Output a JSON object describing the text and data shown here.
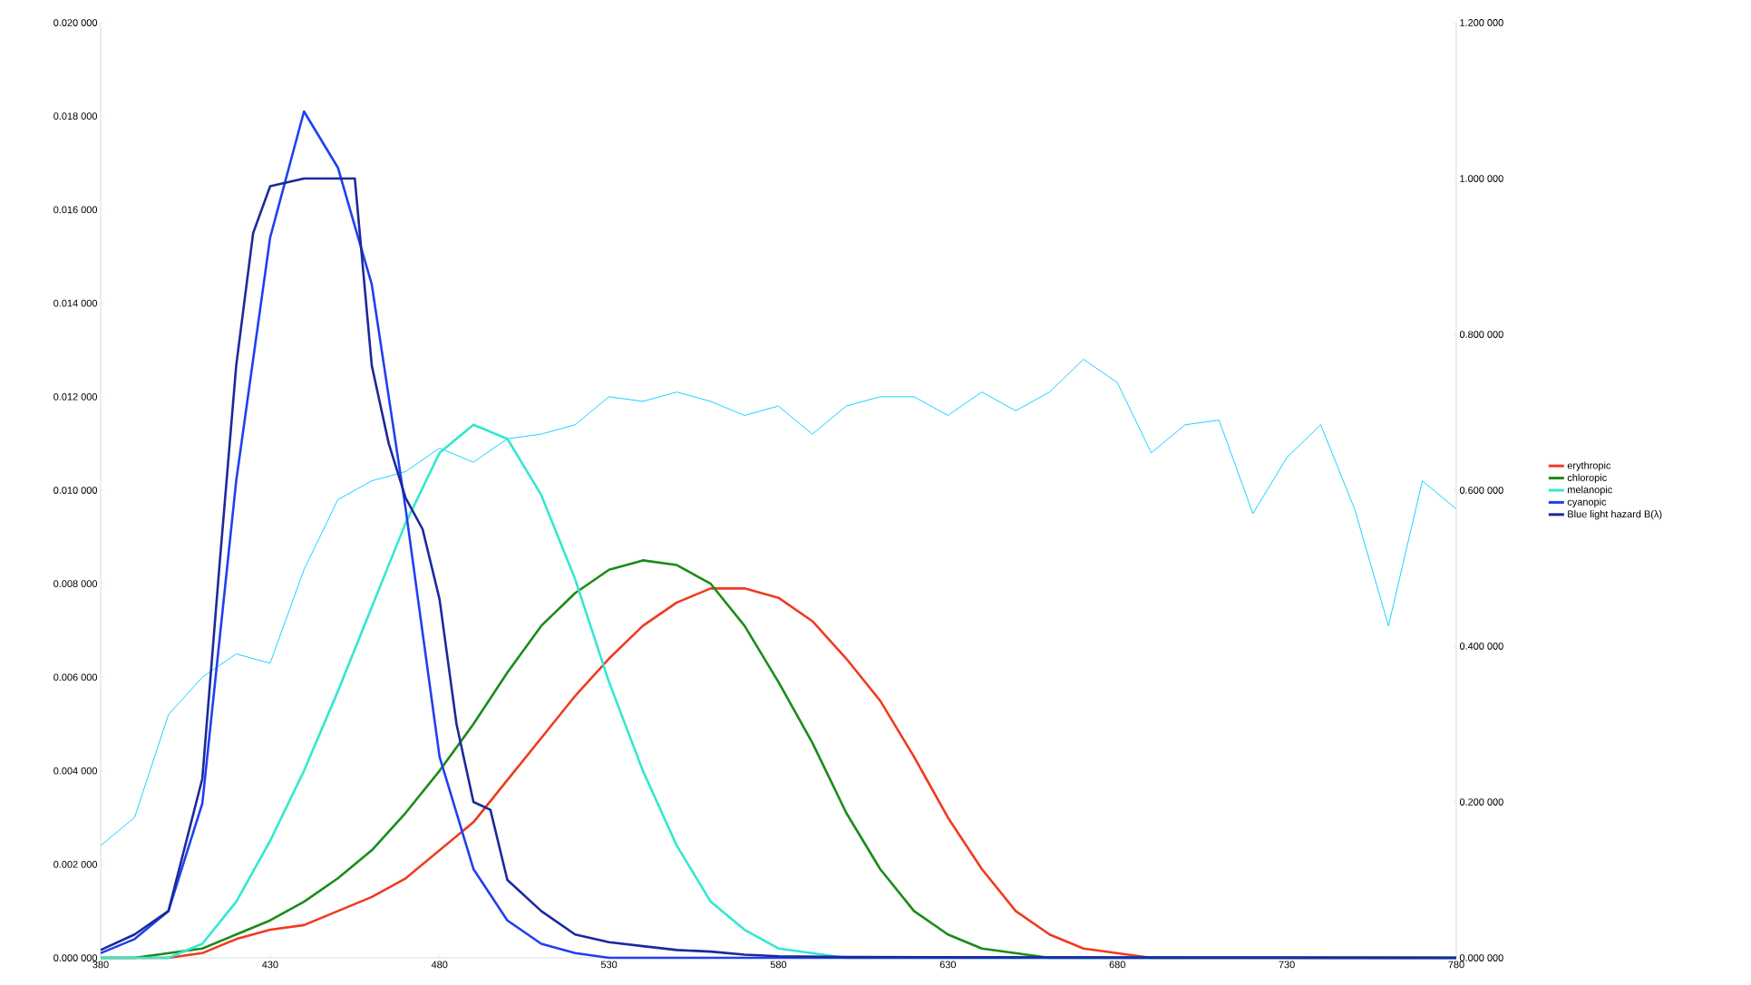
{
  "chart_data": {
    "type": "line",
    "legend": "right",
    "grid": false,
    "marker": "none",
    "line_style": "solid",
    "xlim": [
      380,
      780
    ],
    "xticks": [
      380,
      430,
      480,
      530,
      580,
      630,
      680,
      730,
      780
    ],
    "ylim": [
      0,
      0.02
    ],
    "yticks": [
      {
        "value": 0,
        "label": "0.000 000"
      },
      {
        "value": 0.002,
        "label": "0.002 000"
      },
      {
        "value": 0.004,
        "label": "0.004 000"
      },
      {
        "value": 0.006,
        "label": "0.006 000"
      },
      {
        "value": 0.008,
        "label": "0.008 000"
      },
      {
        "value": 0.01,
        "label": "0.010 000"
      },
      {
        "value": 0.012,
        "label": "0.012 000"
      },
      {
        "value": 0.014,
        "label": "0.014 000"
      },
      {
        "value": 0.016,
        "label": "0.016 000"
      },
      {
        "value": 0.018,
        "label": "0.018 000"
      },
      {
        "value": 0.02,
        "label": "0.020 000"
      }
    ],
    "y2lim": [
      0,
      1.2
    ],
    "y2ticks": [
      {
        "value": 0,
        "label": "0.000 000"
      },
      {
        "value": 0.2,
        "label": "0.200 000"
      },
      {
        "value": 0.4,
        "label": "0.400 000"
      },
      {
        "value": 0.6,
        "label": "0.600 000"
      },
      {
        "value": 0.8,
        "label": "0.800 000"
      },
      {
        "value": 1.0,
        "label": "1.000 000"
      },
      {
        "value": 1.2,
        "label": "1.200 000"
      }
    ],
    "series": [
      {
        "color": "#00ccff",
        "x": [
          380,
          390,
          400,
          410,
          420,
          430,
          440,
          450,
          460,
          470,
          480,
          490,
          500,
          510,
          520,
          530,
          540,
          550,
          560,
          570,
          580,
          590,
          600,
          610,
          620,
          630,
          640,
          650,
          660,
          670,
          680,
          690,
          700,
          710,
          720,
          730,
          740,
          750,
          760,
          770,
          780
        ],
        "values": [
          0.0024,
          0.003,
          0.0052,
          0.006,
          0.0065,
          0.0063,
          0.0083,
          0.0098,
          0.0102,
          0.0104,
          0.0109,
          0.0106,
          0.0111,
          0.0112,
          0.0114,
          0.012,
          0.0119,
          0.0121,
          0.0119,
          0.0116,
          0.0118,
          0.0112,
          0.0118,
          0.012,
          0.012,
          0.0116,
          0.0121,
          0.0117,
          0.0121,
          0.0128,
          0.0123,
          0.0108,
          0.0114,
          0.0115,
          0.0095,
          0.0107,
          0.0114,
          0.0096,
          0.0071,
          0.0102,
          0.0096
        ]
      },
      {
        "name": "erythropic",
        "color": "#f03a20",
        "x": [
          380,
          390,
          400,
          410,
          420,
          430,
          440,
          450,
          460,
          470,
          480,
          490,
          500,
          510,
          520,
          530,
          540,
          550,
          560,
          570,
          580,
          590,
          600,
          610,
          620,
          630,
          640,
          650,
          660,
          670,
          680,
          690,
          700,
          780
        ],
        "values": [
          0,
          0,
          0,
          0.0001,
          0.0004,
          0.0006,
          0.0007,
          0.001,
          0.0013,
          0.0017,
          0.0023,
          0.0029,
          0.0038,
          0.0047,
          0.0056,
          0.0064,
          0.0071,
          0.0076,
          0.0079,
          0.0079,
          0.0077,
          0.0072,
          0.0064,
          0.0055,
          0.0043,
          0.003,
          0.0019,
          0.001,
          0.0005,
          0.0002,
          0.0001,
          0,
          0,
          0
        ]
      },
      {
        "name": "chloropic",
        "color": "#1a8c1a",
        "x": [
          380,
          390,
          400,
          410,
          420,
          430,
          440,
          450,
          460,
          470,
          480,
          490,
          500,
          510,
          520,
          530,
          540,
          550,
          560,
          570,
          580,
          590,
          600,
          610,
          620,
          630,
          640,
          650,
          660,
          780
        ],
        "values": [
          0,
          0,
          0.0001,
          0.0002,
          0.0005,
          0.0008,
          0.0012,
          0.0017,
          0.0023,
          0.0031,
          0.004,
          0.005,
          0.0061,
          0.0071,
          0.0078,
          0.0083,
          0.0085,
          0.0084,
          0.008,
          0.0071,
          0.0059,
          0.0046,
          0.0031,
          0.0019,
          0.001,
          0.0005,
          0.0002,
          0.0001,
          0,
          0
        ]
      },
      {
        "name": "melanopic",
        "color": "#33e8d0",
        "x": [
          380,
          390,
          400,
          410,
          420,
          430,
          440,
          450,
          460,
          470,
          480,
          490,
          500,
          510,
          520,
          530,
          540,
          550,
          560,
          570,
          580,
          590,
          600,
          780
        ],
        "values": [
          0,
          0,
          0,
          0.0003,
          0.0012,
          0.0025,
          0.004,
          0.0057,
          0.0075,
          0.0093,
          0.0108,
          0.0114,
          0.0111,
          0.0099,
          0.0081,
          0.0059,
          0.004,
          0.0024,
          0.0012,
          0.0006,
          0.0002,
          0.0001,
          0,
          0
        ]
      },
      {
        "name": "cyanopic",
        "color": "#2040f0",
        "x": [
          380,
          390,
          400,
          410,
          420,
          430,
          440,
          450,
          460,
          470,
          480,
          490,
          500,
          510,
          520,
          530,
          780
        ],
        "values": [
          0.0001,
          0.0004,
          0.001,
          0.0033,
          0.0102,
          0.0154,
          0.0181,
          0.0169,
          0.0144,
          0.0096,
          0.0043,
          0.0019,
          0.0008,
          0.0003,
          0.0001,
          0,
          0
        ]
      },
      {
        "name": "Blue light hazard B(λ)",
        "color": "#1a2a9a",
        "axis": "y2",
        "x": [
          380,
          390,
          400,
          410,
          415,
          420,
          425,
          430,
          440,
          450,
          455,
          460,
          465,
          470,
          475,
          480,
          485,
          490,
          495,
          500,
          510,
          520,
          530,
          540,
          550,
          560,
          570,
          580,
          600,
          780
        ],
        "values": [
          0.01,
          0.03,
          0.06,
          0.23,
          0.5,
          0.76,
          0.93,
          0.99,
          1.0,
          1.0,
          1.0,
          0.76,
          0.66,
          0.59,
          0.55,
          0.46,
          0.3,
          0.2,
          0.19,
          0.1,
          0.06,
          0.03,
          0.02,
          0.015,
          0.01,
          0.008,
          0.004,
          0.002,
          0.001,
          0
        ]
      }
    ]
  }
}
